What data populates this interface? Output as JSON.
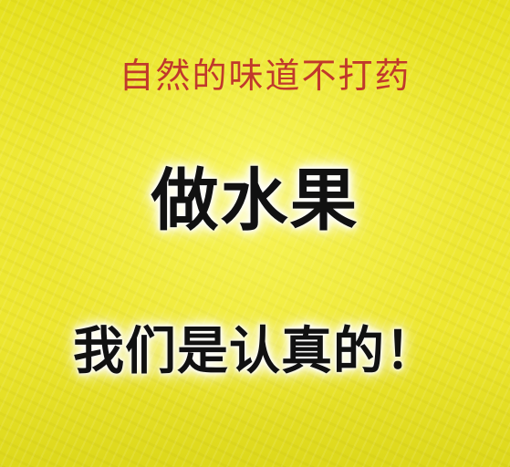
{
  "tagline": {
    "text": "自然的味道不打药",
    "color": "#c0392b"
  },
  "headline": {
    "text": "做水果",
    "color": "#111111"
  },
  "slogan": {
    "text": "我们是认真的！",
    "color": "#111111"
  },
  "background_color": "#ece62e"
}
